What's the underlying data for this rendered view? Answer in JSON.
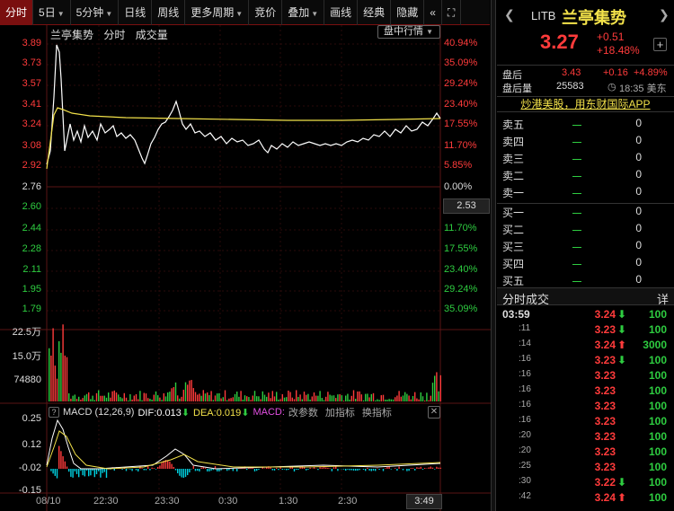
{
  "toolbar": {
    "tabs": [
      {
        "label": "分时",
        "arrow": false,
        "active": true
      },
      {
        "label": "5日",
        "arrow": true,
        "active": false
      },
      {
        "label": "5分钟",
        "arrow": true,
        "active": false
      },
      {
        "label": "日线",
        "arrow": false,
        "active": false
      },
      {
        "label": "周线",
        "arrow": false,
        "active": false
      },
      {
        "label": "更多周期",
        "arrow": true,
        "active": false
      },
      {
        "label": "竞价",
        "arrow": false,
        "active": false
      },
      {
        "label": "叠加",
        "arrow": true,
        "active": false
      },
      {
        "label": "画线",
        "arrow": false,
        "active": false
      },
      {
        "label": "经典",
        "arrow": false,
        "active": false
      },
      {
        "label": "隐藏",
        "arrow": false,
        "active": false
      }
    ],
    "collapse_glyph": "«",
    "expand_glyph": "⛶"
  },
  "chart_header": {
    "name": "兰亭集势",
    "mode": "分时",
    "volume_label": "成交量",
    "dropdown": "盘中行情"
  },
  "price_axis": {
    "left": [
      {
        "v": "3.89",
        "c": "red"
      },
      {
        "v": "3.73",
        "c": "red"
      },
      {
        "v": "3.57",
        "c": "red"
      },
      {
        "v": "3.41",
        "c": "red"
      },
      {
        "v": "3.24",
        "c": "red"
      },
      {
        "v": "3.08",
        "c": "red"
      },
      {
        "v": "2.92",
        "c": "red"
      },
      {
        "v": "2.76",
        "c": "wht"
      },
      {
        "v": "2.60",
        "c": "grn"
      },
      {
        "v": "2.44",
        "c": "grn"
      },
      {
        "v": "2.28",
        "c": "grn"
      },
      {
        "v": "2.11",
        "c": "grn"
      },
      {
        "v": "1.95",
        "c": "grn"
      },
      {
        "v": "1.79",
        "c": "grn"
      }
    ],
    "right": [
      {
        "v": "40.94%",
        "c": "red"
      },
      {
        "v": "35.09%",
        "c": "red"
      },
      {
        "v": "29.24%",
        "c": "red"
      },
      {
        "v": "23.40%",
        "c": "red"
      },
      {
        "v": "17.55%",
        "c": "red"
      },
      {
        "v": "11.70%",
        "c": "red"
      },
      {
        "v": "5.85%",
        "c": "red"
      },
      {
        "v": "0.00%",
        "c": "wht"
      },
      {
        "v": "5.85%",
        "c": "grn"
      },
      {
        "v": "11.70%",
        "c": "grn"
      },
      {
        "v": "17.55%",
        "c": "grn"
      },
      {
        "v": "23.40%",
        "c": "grn"
      },
      {
        "v": "29.24%",
        "c": "grn"
      },
      {
        "v": "35.09%",
        "c": "grn"
      }
    ],
    "cursor_value": "2.53"
  },
  "volume_axis": [
    "22.5万",
    "15.0万",
    "74880"
  ],
  "macd": {
    "help": "?",
    "label": "MACD (12,26,9)",
    "dif_label": "DIF:",
    "dif_value": "0.013",
    "dif_arrow": "⬇",
    "dea_label": "DEA:",
    "dea_value": "0.019",
    "dea_arrow": "⬇",
    "macd_label": "MACD:",
    "change_params": "改参数",
    "add_indicator": "加指标",
    "switch_indicator": "换指标",
    "close": "✕",
    "axis": [
      "0.25",
      "0.12",
      "-0.02",
      "-0.15"
    ]
  },
  "time_axis": [
    "08/10",
    "22:30",
    "23:30",
    "0:30",
    "1:30",
    "2:30"
  ],
  "cursor_time": "3:49",
  "stock": {
    "code": "LITB",
    "name": "兰亭集势",
    "price": "3.27",
    "change": "+0.51",
    "change_pct": "+18.48%",
    "plus": "+",
    "after_label": "盘后",
    "after_price": "3.43",
    "after_change": "+0.16",
    "after_pct": "+4.89%",
    "after_vol_label": "盘后量",
    "after_vol": "25583",
    "clock_icon": "◷",
    "time_label": "18:35 美东",
    "promo": "炒港美股，用东财国际APP"
  },
  "orderbook": {
    "asks": [
      {
        "label": "卖五",
        "qty": "0"
      },
      {
        "label": "卖四",
        "qty": "0"
      },
      {
        "label": "卖三",
        "qty": "0"
      },
      {
        "label": "卖二",
        "qty": "0"
      },
      {
        "label": "卖一",
        "qty": "0"
      }
    ],
    "bids": [
      {
        "label": "买一",
        "qty": "0"
      },
      {
        "label": "买二",
        "qty": "0"
      },
      {
        "label": "买三",
        "qty": "0"
      },
      {
        "label": "买四",
        "qty": "0"
      },
      {
        "label": "买五",
        "qty": "0"
      }
    ]
  },
  "trades": {
    "title": "分时成交",
    "detail": "详",
    "rows": [
      {
        "t": "03:59",
        "p": "3.24",
        "a": "⬇",
        "ac": "grn",
        "v": "100",
        "vc": "grn"
      },
      {
        "t": ":11",
        "p": "3.23",
        "a": "⬇",
        "ac": "grn",
        "v": "100",
        "vc": "grn"
      },
      {
        "t": ":14",
        "p": "3.24",
        "a": "⬆",
        "ac": "red",
        "v": "3000",
        "vc": "red"
      },
      {
        "t": ":16",
        "p": "3.23",
        "a": "⬇",
        "ac": "grn",
        "v": "100",
        "vc": "grn"
      },
      {
        "t": ":16",
        "p": "3.23",
        "a": "",
        "ac": "",
        "v": "100",
        "vc": "grn"
      },
      {
        "t": ":16",
        "p": "3.23",
        "a": "",
        "ac": "",
        "v": "100",
        "vc": "grn"
      },
      {
        "t": ":16",
        "p": "3.23",
        "a": "",
        "ac": "",
        "v": "100",
        "vc": "grn"
      },
      {
        "t": ":16",
        "p": "3.23",
        "a": "",
        "ac": "",
        "v": "100",
        "vc": "grn"
      },
      {
        "t": ":20",
        "p": "3.23",
        "a": "",
        "ac": "",
        "v": "100",
        "vc": "grn"
      },
      {
        "t": ":20",
        "p": "3.23",
        "a": "",
        "ac": "",
        "v": "100",
        "vc": "grn"
      },
      {
        "t": ":25",
        "p": "3.23",
        "a": "",
        "ac": "",
        "v": "100",
        "vc": "grn"
      },
      {
        "t": ":30",
        "p": "3.22",
        "a": "⬇",
        "ac": "grn",
        "v": "100",
        "vc": "grn"
      },
      {
        "t": ":42",
        "p": "3.24",
        "a": "⬆",
        "ac": "red",
        "v": "100",
        "vc": "red"
      }
    ]
  },
  "colors": {
    "up": "#ff3b3b",
    "down": "#2ecc40",
    "price_line": "#ffffff",
    "avg_line": "#f3e24a",
    "panel_bg": "#000000",
    "active_tab": "#7a0f0f"
  }
}
